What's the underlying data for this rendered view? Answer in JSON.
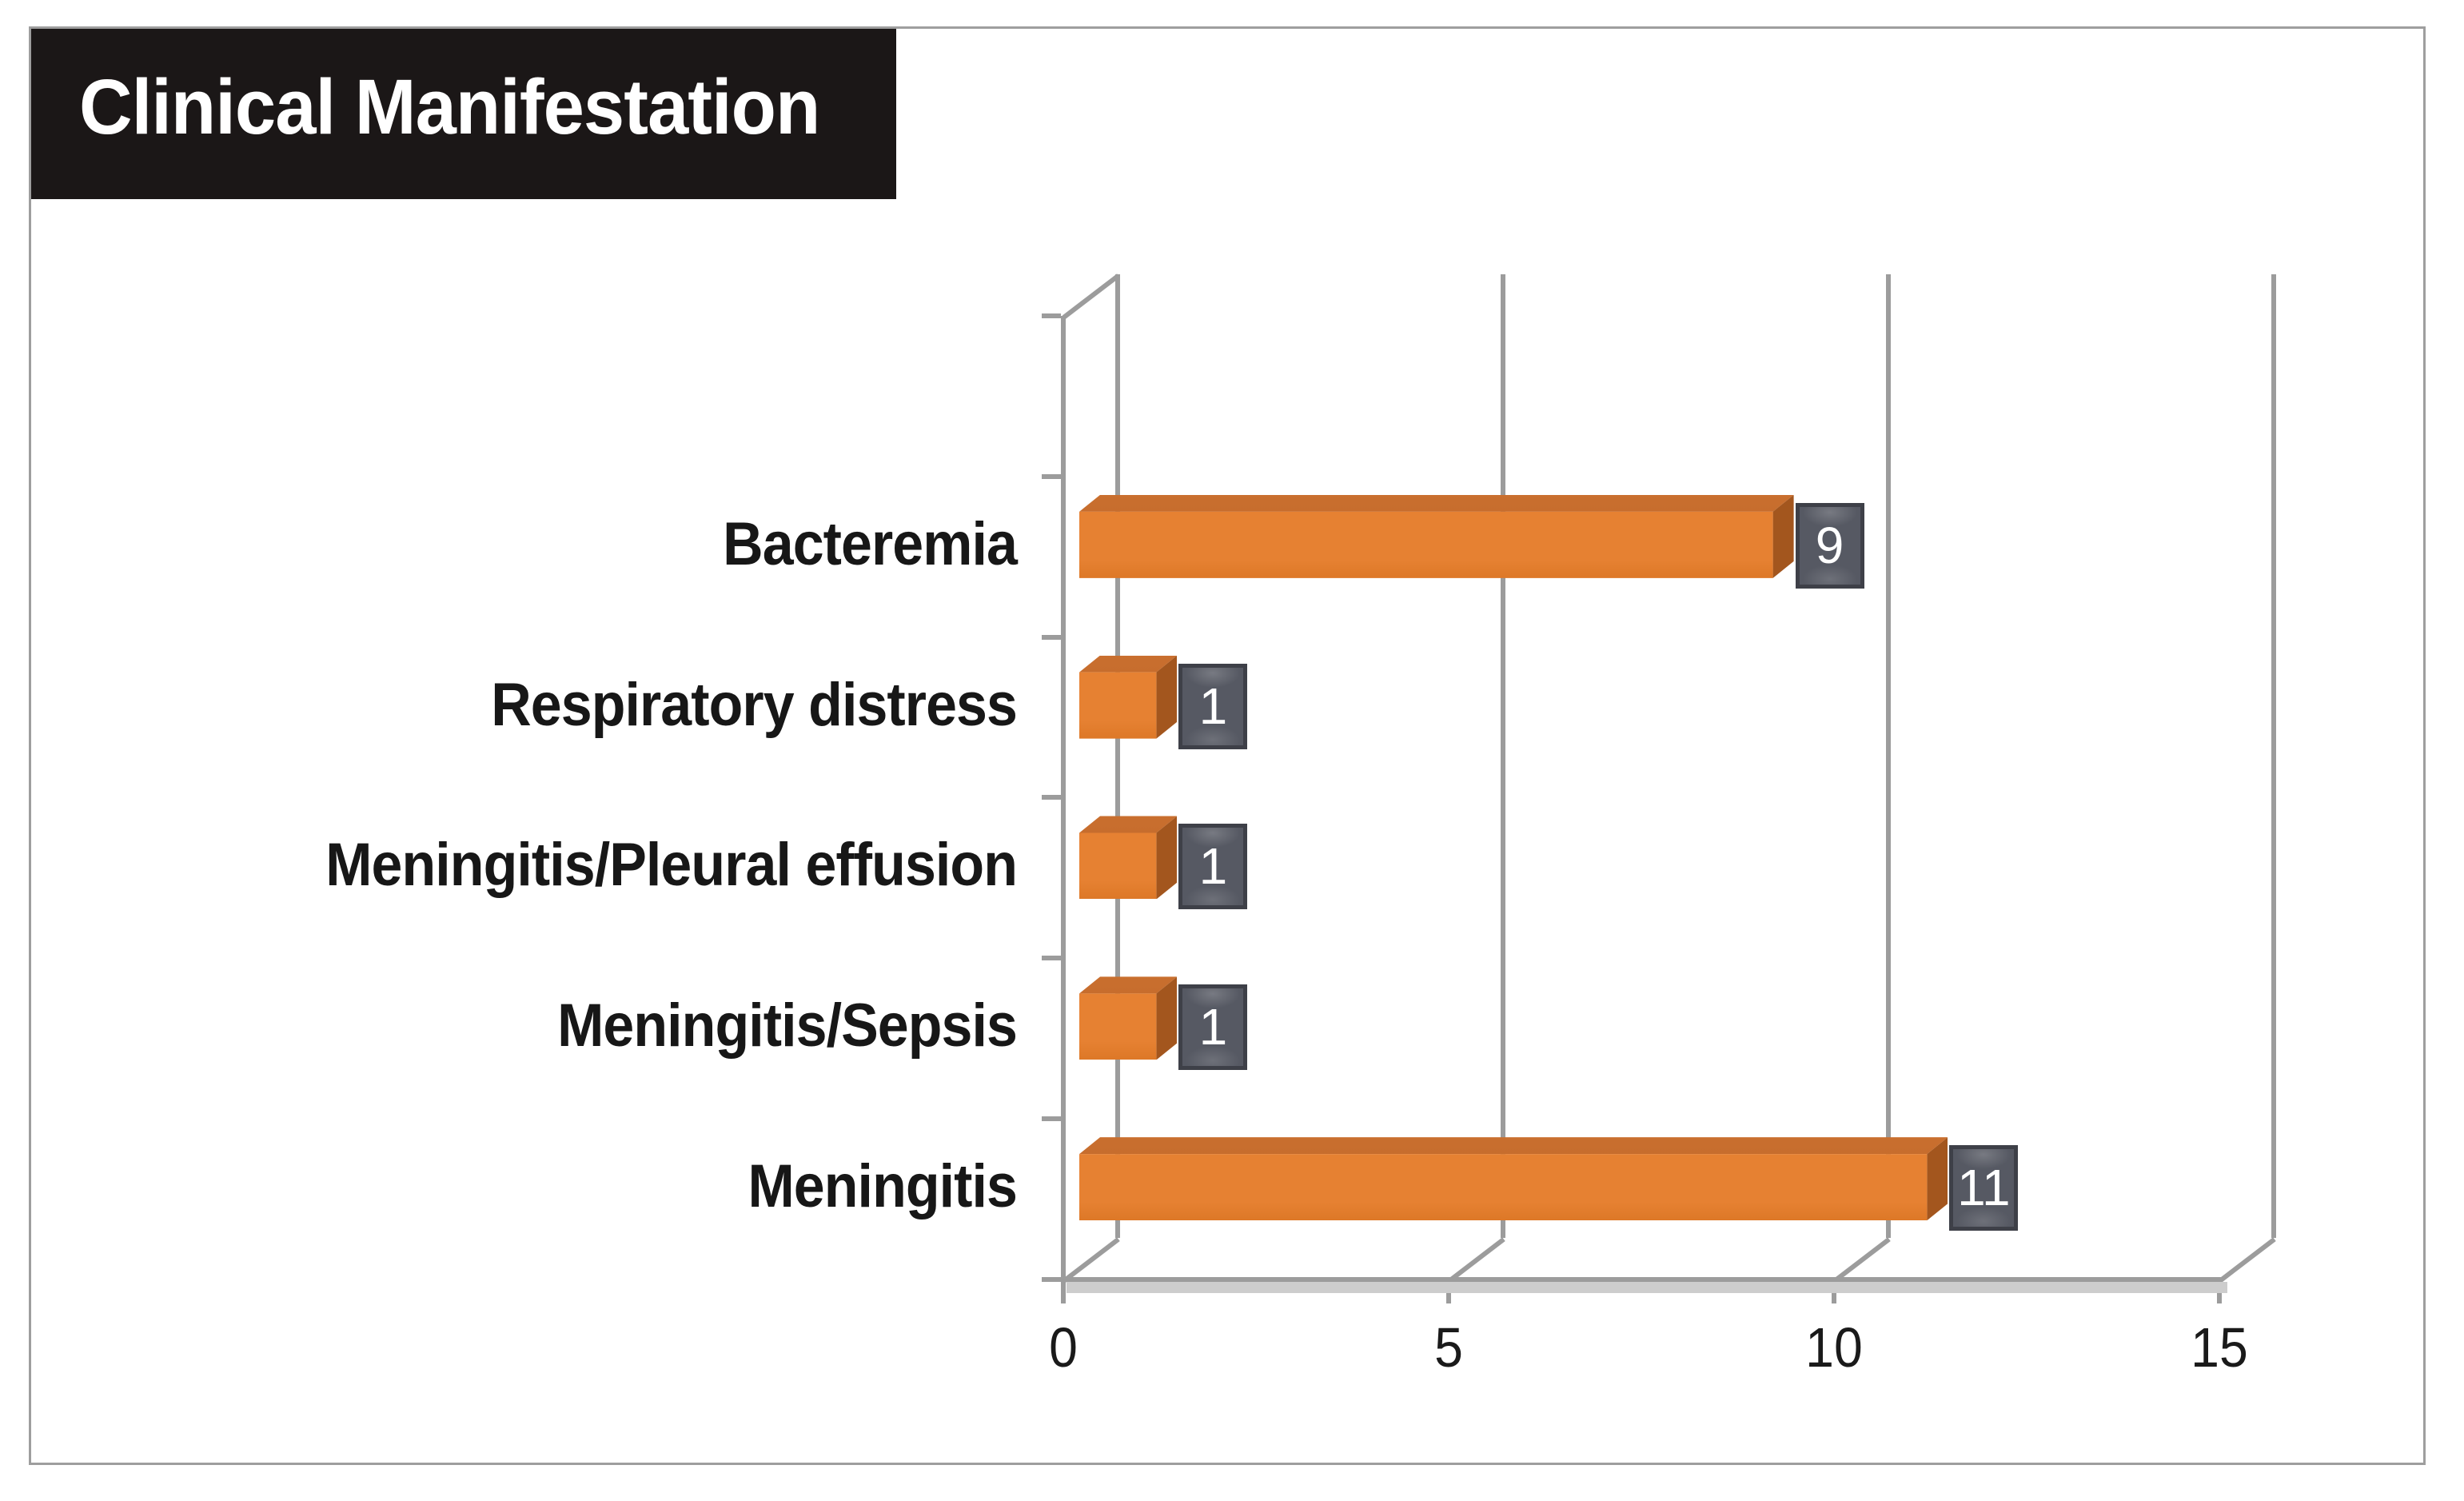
{
  "title": {
    "text": "Clinical Manifestation",
    "bg": "#1b1717",
    "color": "#ffffff"
  },
  "frame": {
    "border_color": "#9e9e9e",
    "background": "#ffffff"
  },
  "chart_data": {
    "type": "bar",
    "orientation": "horizontal",
    "style": "3d",
    "title": "Clinical Manifestation",
    "categories": [
      "Bacteremia",
      "Respiratory distress",
      "Meningitis/Pleural effusion",
      "Meningitis/Sepsis",
      "Meningitis"
    ],
    "values": [
      9,
      1,
      1,
      1,
      11
    ],
    "data_labels": [
      "9",
      "1",
      "1",
      "1",
      "11"
    ],
    "x_ticks": [
      "0",
      "5",
      "10",
      "15"
    ],
    "x_tick_values": [
      0,
      5,
      10,
      15
    ],
    "xlim": [
      0,
      15
    ],
    "xlabel": "",
    "ylabel": "",
    "grid": true,
    "legend": null,
    "colors": {
      "bar_front": "#e68132",
      "bar_front_dark": "#dd7827",
      "bar_top": "#bd6425",
      "bar_top_light": "#c96f2f",
      "bar_side": "#a3561e",
      "gridline": "#9c9c9c",
      "floor_strip": "#cdcdcd",
      "value_box_bg": "#565963",
      "value_box_border": "#3e4048",
      "value_box_text": "#ffffff",
      "category_text": "#171717",
      "tick_text": "#1a1a1a"
    }
  }
}
